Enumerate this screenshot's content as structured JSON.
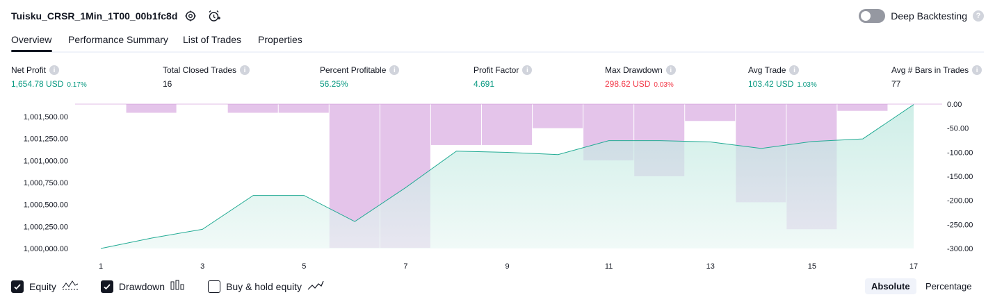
{
  "header": {
    "title": "Tuisku_CRSR_1Min_1T00_00b1fc8d",
    "deep_backtesting_label": "Deep Backtesting",
    "help_glyph": "?"
  },
  "tabs": [
    {
      "label": "Overview",
      "active": true
    },
    {
      "label": "Performance Summary",
      "active": false
    },
    {
      "label": "List of Trades",
      "active": false
    },
    {
      "label": "Properties",
      "active": false
    }
  ],
  "info_glyph": "i",
  "metrics": [
    {
      "label": "Net Profit",
      "value": "1,654.78 USD",
      "pct": "0.17%",
      "color": "green"
    },
    {
      "label": "Total Closed Trades",
      "value": "16",
      "pct": "",
      "color": "dark"
    },
    {
      "label": "Percent Profitable",
      "value": "56.25%",
      "pct": "",
      "color": "green"
    },
    {
      "label": "Profit Factor",
      "value": "4.691",
      "pct": "",
      "color": "green"
    },
    {
      "label": "Max Drawdown",
      "value": "298.62 USD",
      "pct": "0.03%",
      "color": "red"
    },
    {
      "label": "Avg Trade",
      "value": "103.42 USD",
      "pct": "1.03%",
      "color": "green"
    },
    {
      "label": "Avg # Bars in Trades",
      "value": "77",
      "pct": "",
      "color": "dark"
    }
  ],
  "colors": {
    "equity_line": "#22ab94",
    "equity_fill_top": "#b7e6dc",
    "equity_fill_bottom": "#eaf7f4",
    "drawdown_bar": "#ce93d8",
    "positive": "#089981",
    "negative": "#f23645"
  },
  "chart_data": {
    "type": "line",
    "x": [
      1,
      2,
      3,
      4,
      5,
      6,
      7,
      8,
      9,
      10,
      11,
      12,
      13,
      14,
      15,
      16,
      17
    ],
    "x_tick_labels": [
      "1",
      "3",
      "5",
      "7",
      "9",
      "11",
      "13",
      "15",
      "17"
    ],
    "left_axis_ticks": [
      "1,001,500.00",
      "1,001,250.00",
      "1,001,000.00",
      "1,000,750.00",
      "1,000,500.00",
      "1,000,250.00",
      "1,000,000.00"
    ],
    "right_axis_ticks": [
      "0.00",
      "-50.00",
      "-100.00",
      "-150.00",
      "-200.00",
      "-250.00",
      "-300.00"
    ],
    "left_ylim": [
      1000000,
      1001660
    ],
    "right_ylim": [
      -300,
      0
    ],
    "series": [
      {
        "name": "Equity",
        "axis": "left",
        "style": "area",
        "values": [
          1000000,
          1000120,
          1000220,
          1000610,
          1000610,
          1000310,
          1000700,
          1001120,
          1001105,
          1001080,
          1001240,
          1001240,
          1001225,
          1001150,
          1001230,
          1001260,
          1001654.78
        ]
      },
      {
        "name": "Drawdown",
        "axis": "right",
        "style": "bar",
        "values": [
          0,
          -18,
          0,
          -18,
          -18,
          -298.62,
          -298.62,
          -85,
          -85,
          -50,
          -117,
          -150,
          -35,
          -204,
          -260,
          -14,
          0
        ]
      }
    ],
    "grid": false
  },
  "legend": {
    "items": [
      {
        "label": "Equity",
        "checked": true,
        "icon": "equity-line-icon"
      },
      {
        "label": "Drawdown",
        "checked": true,
        "icon": "drawdown-bars-icon"
      },
      {
        "label": "Buy & hold equity",
        "checked": false,
        "icon": "buy-hold-line-icon"
      }
    ],
    "modes": [
      "Absolute",
      "Percentage"
    ],
    "active_mode": "Absolute"
  }
}
